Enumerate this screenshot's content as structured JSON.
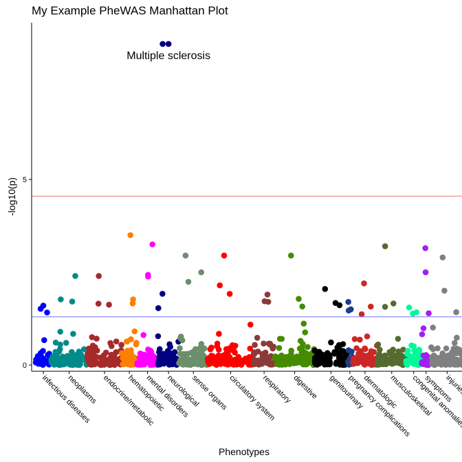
{
  "chart_data": {
    "type": "scatter",
    "title": "My Example PheWAS Manhattan Plot",
    "xlabel": "Phenotypes",
    "ylabel": "-log10(p)",
    "ylim": [
      0,
      9.2
    ],
    "yticks": [
      0,
      5
    ],
    "grid": false,
    "legend": "none",
    "thresholds": [
      {
        "value": 4.55,
        "color": "#f08080"
      },
      {
        "value": 1.3,
        "color": "#8080ff"
      }
    ],
    "categories": [
      {
        "name": "infectious diseases",
        "color": "#0000ff",
        "n": 40,
        "max": 1.6
      },
      {
        "name": "neoplasms",
        "color": "#008b8b",
        "n": 95,
        "max": 2.4
      },
      {
        "name": "endocrine/metabolic",
        "color": "#a52a2a",
        "n": 90,
        "max": 2.4
      },
      {
        "name": "hematopoietic",
        "color": "#ff7f00",
        "n": 40,
        "max": 3.5
      },
      {
        "name": "mental disorders",
        "color": "#ff00ff",
        "n": 55,
        "max": 3.25
      },
      {
        "name": "neurological",
        "color": "#000080",
        "n": 55,
        "max": 8.65
      },
      {
        "name": "sense organs",
        "color": "#6b8e6b",
        "n": 75,
        "max": 2.95
      },
      {
        "name": "circulatory system",
        "color": "#ff0000",
        "n": 120,
        "max": 2.95
      },
      {
        "name": "respiratory",
        "color": "#8b3a3a",
        "n": 55,
        "max": 1.9
      },
      {
        "name": "digestive",
        "color": "#458b00",
        "n": 105,
        "max": 2.95
      },
      {
        "name": "genitourinary",
        "color": "#000000",
        "n": 85,
        "max": 2.05
      },
      {
        "name": "pregnancy complications",
        "color": "#1c3c8c",
        "n": 14,
        "max": 1.7
      },
      {
        "name": "dermatologic",
        "color": "#cd2626",
        "n": 65,
        "max": 2.2
      },
      {
        "name": "musculoskeletal",
        "color": "#556b2f",
        "n": 75,
        "max": 3.2
      },
      {
        "name": "congenital anomalies",
        "color": "#00fa9a",
        "n": 40,
        "max": 1.55
      },
      {
        "name": "symptoms",
        "color": "#a020f0",
        "n": 25,
        "max": 3.15
      },
      {
        "name": "injuries & poisonings",
        "color": "#808080",
        "n": 85,
        "max": 2.9
      }
    ],
    "annotations": [
      {
        "text": "Multiple sclerosis",
        "category": "neurological",
        "y": 8.65
      }
    ]
  }
}
